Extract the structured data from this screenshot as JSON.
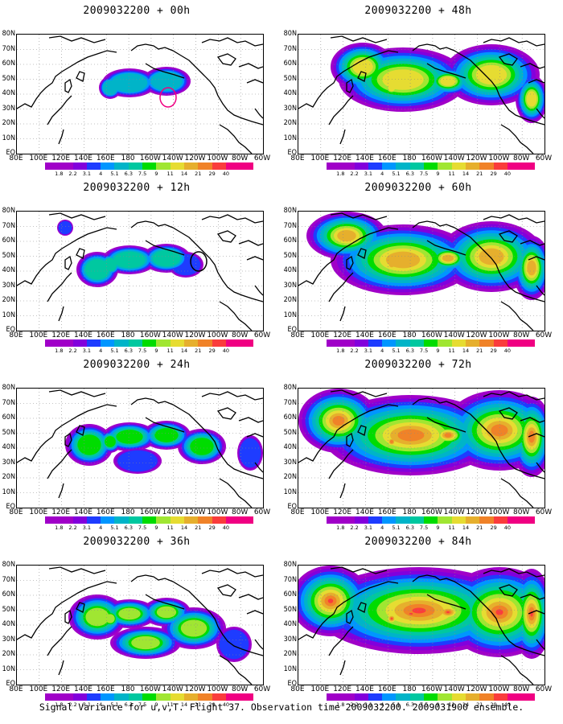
{
  "panels": [
    {
      "title": "2009032200 + 00h",
      "col": 0,
      "row": 0,
      "level": 0
    },
    {
      "title": "2009032200 + 12h",
      "col": 0,
      "row": 1,
      "level": 1
    },
    {
      "title": "2009032200 + 24h",
      "col": 0,
      "row": 2,
      "level": 2
    },
    {
      "title": "2009032200 + 36h",
      "col": 0,
      "row": 3,
      "level": 3
    },
    {
      "title": "2009032200 + 48h",
      "col": 1,
      "row": 0,
      "level": 4
    },
    {
      "title": "2009032200 + 60h",
      "col": 1,
      "row": 1,
      "level": 5
    },
    {
      "title": "2009032200 + 72h",
      "col": 1,
      "row": 2,
      "level": 6
    },
    {
      "title": "2009032200 + 84h",
      "col": 1,
      "row": 3,
      "level": 7
    }
  ],
  "lat_labels": [
    "80N",
    "70N",
    "60N",
    "50N",
    "40N",
    "30N",
    "20N",
    "10N",
    "EQ"
  ],
  "lon_labels": [
    "80E",
    "100E",
    "120E",
    "140E",
    "160E",
    "180",
    "160W",
    "140W",
    "120W",
    "100W",
    "80W",
    "60W"
  ],
  "legend": {
    "values": [
      "1.8",
      "2.2",
      "3.1",
      "4",
      "5.1",
      "6.3",
      "7.5",
      "9",
      "11",
      "14",
      "21",
      "29",
      "40"
    ],
    "colors": [
      "#a000c8",
      "#8200dc",
      "#1e3cff",
      "#0096ff",
      "#00b4c8",
      "#00c8a0",
      "#00dc00",
      "#a0e632",
      "#e6dc32",
      "#e6af2d",
      "#f08228",
      "#fa3c3c",
      "#f00082"
    ]
  },
  "caption": "Signal Variance for u,v,T. Flight 37. Observation time 2009032200. 2009031900 ensemble."
}
